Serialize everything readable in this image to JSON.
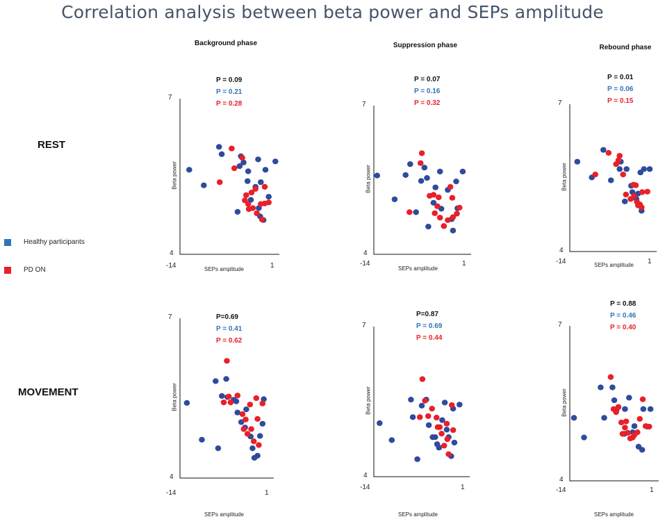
{
  "title": "Correlation analysis between beta power and SEPs amplitude",
  "phases": [
    "Background phase",
    "Suppression phase",
    "Rebound phase"
  ],
  "rows": [
    "REST",
    "MOVEMENT"
  ],
  "legend": [
    {
      "label": "Healthy participants",
      "color": "#2e4b9c"
    },
    {
      "label": "PD ON",
      "color": "#e8202a"
    }
  ],
  "colors": {
    "overall": "#111111",
    "healthy_text": "#2e75b6",
    "pd_text": "#e8202a",
    "healthy_dot": "#2e4b9c",
    "pd_dot": "#e8202a"
  },
  "chart_data": [
    {
      "type": "scatter",
      "row": "REST",
      "phase": "Background phase",
      "xlabel": "SEPs amplitude",
      "ylabel": "Beta power",
      "x_tick_labels": [
        "-14",
        "1"
      ],
      "y_tick_labels": [
        "4",
        "7"
      ],
      "xlim": [
        -14,
        1
      ],
      "ylim": [
        4,
        7
      ],
      "p_values": [
        "P = 0.09",
        "P = 0.21",
        "P = 0.28"
      ],
      "series": [
        {
          "name": "Healthy participants",
          "points": [
            [
              -12.6,
              5.63
            ],
            [
              -10.4,
              5.33
            ],
            [
              -8.1,
              6.07
            ],
            [
              -7.7,
              5.93
            ],
            [
              -5.3,
              4.82
            ],
            [
              -5.0,
              5.7
            ],
            [
              -4.8,
              5.89
            ],
            [
              -4.4,
              5.77
            ],
            [
              -3.8,
              5.41
            ],
            [
              -3.7,
              5.6
            ],
            [
              -3.3,
              5.05
            ],
            [
              -2.6,
              5.3
            ],
            [
              -2.2,
              5.83
            ],
            [
              -2.1,
              4.89
            ],
            [
              -1.9,
              4.73
            ],
            [
              -1.8,
              5.39
            ],
            [
              -1.4,
              4.66
            ],
            [
              -1.1,
              5.63
            ],
            [
              -0.6,
              5.11
            ],
            [
              0.4,
              5.79
            ]
          ]
        },
        {
          "name": "PD ON",
          "points": [
            [
              -8.0,
              5.39
            ],
            [
              -6.2,
              6.04
            ],
            [
              -5.8,
              5.66
            ],
            [
              -4.6,
              5.86
            ],
            [
              -4.2,
              5.04
            ],
            [
              -4.0,
              5.14
            ],
            [
              -3.7,
              4.97
            ],
            [
              -3.6,
              4.87
            ],
            [
              -3.2,
              5.19
            ],
            [
              -3.0,
              4.89
            ],
            [
              -2.6,
              5.26
            ],
            [
              -2.4,
              4.79
            ],
            [
              -1.8,
              4.97
            ],
            [
              -1.6,
              4.67
            ],
            [
              -1.2,
              4.98
            ],
            [
              -1.2,
              5.3
            ],
            [
              -0.6,
              5.0
            ]
          ]
        }
      ]
    },
    {
      "type": "scatter",
      "row": "REST",
      "phase": "Suppression phase",
      "xlabel": "SEPs amplitude",
      "ylabel": "Beta power",
      "x_tick_labels": [
        "-14",
        "1"
      ],
      "y_tick_labels": [
        "4",
        "7"
      ],
      "xlim": [
        -14,
        1
      ],
      "ylim": [
        4,
        7
      ],
      "p_values": [
        "P = 0.07",
        "P = 0.16",
        "P = 0.32"
      ],
      "series": [
        {
          "name": "Healthy participants",
          "points": [
            [
              -13.5,
              5.59
            ],
            [
              -10.8,
              5.11
            ],
            [
              -9.1,
              5.6
            ],
            [
              -8.4,
              5.82
            ],
            [
              -7.5,
              4.85
            ],
            [
              -6.7,
              5.48
            ],
            [
              -6.2,
              5.75
            ],
            [
              -5.8,
              5.54
            ],
            [
              -5.6,
              4.56
            ],
            [
              -4.8,
              5.04
            ],
            [
              -4.5,
              5.35
            ],
            [
              -3.8,
              5.67
            ],
            [
              -3.6,
              4.92
            ],
            [
              -3.2,
              4.57
            ],
            [
              -2.6,
              5.3
            ],
            [
              -2.0,
              4.71
            ],
            [
              -1.8,
              4.48
            ],
            [
              -1.3,
              5.47
            ],
            [
              -1.1,
              4.93
            ],
            [
              -0.3,
              5.67
            ]
          ]
        },
        {
          "name": "PD ON",
          "points": [
            [
              -8.5,
              4.85
            ],
            [
              -6.8,
              5.84
            ],
            [
              -6.6,
              6.04
            ],
            [
              -5.4,
              5.18
            ],
            [
              -4.8,
              5.2
            ],
            [
              -4.6,
              4.83
            ],
            [
              -4.2,
              4.97
            ],
            [
              -4.0,
              5.15
            ],
            [
              -3.8,
              4.74
            ],
            [
              -3.2,
              4.57
            ],
            [
              -2.6,
              4.69
            ],
            [
              -2.2,
              5.36
            ],
            [
              -1.9,
              5.14
            ],
            [
              -1.8,
              4.75
            ],
            [
              -1.2,
              4.82
            ],
            [
              -0.8,
              4.94
            ]
          ]
        }
      ]
    },
    {
      "type": "scatter",
      "row": "REST",
      "phase": "Rebound phase",
      "xlabel": "SEPs amplitude",
      "ylabel": "Beta power",
      "x_tick_labels": [
        "-14",
        "1"
      ],
      "y_tick_labels": [
        "4",
        "7"
      ],
      "xlim": [
        -14,
        1
      ],
      "ylim": [
        4,
        7
      ],
      "p_values": [
        "P = 0.01",
        "P = 0.06",
        "P = 0.15"
      ],
      "series": [
        {
          "name": "Healthy participants",
          "points": [
            [
              -12.7,
              5.83
            ],
            [
              -10.2,
              5.51
            ],
            [
              -8.2,
              6.07
            ],
            [
              -6.9,
              5.45
            ],
            [
              -5.4,
              5.68
            ],
            [
              -5.2,
              5.83
            ],
            [
              -4.5,
              5.02
            ],
            [
              -4.2,
              5.68
            ],
            [
              -3.4,
              5.34
            ],
            [
              -3.2,
              5.21
            ],
            [
              -2.5,
              5.07
            ],
            [
              -2.2,
              5.18
            ],
            [
              -1.8,
              5.61
            ],
            [
              -1.6,
              4.83
            ],
            [
              -1.2,
              5.68
            ],
            [
              -0.2,
              5.68
            ]
          ]
        },
        {
          "name": "PD ON",
          "points": [
            [
              -9.6,
              5.57
            ],
            [
              -7.3,
              6.01
            ],
            [
              -6.0,
              5.78
            ],
            [
              -5.6,
              5.86
            ],
            [
              -5.4,
              5.95
            ],
            [
              -4.8,
              5.57
            ],
            [
              -4.3,
              5.16
            ],
            [
              -3.5,
              5.07
            ],
            [
              -3.0,
              5.36
            ],
            [
              -2.9,
              5.13
            ],
            [
              -2.6,
              5.35
            ],
            [
              -2.4,
              5.01
            ],
            [
              -2.2,
              4.94
            ],
            [
              -1.9,
              4.96
            ],
            [
              -1.5,
              5.21
            ],
            [
              -1.6,
              4.9
            ],
            [
              -0.6,
              5.22
            ]
          ]
        }
      ]
    },
    {
      "type": "scatter",
      "row": "MOVEMENT",
      "phase": "Background phase",
      "xlabel": "SEPs amplitude",
      "ylabel": "Beta power",
      "x_tick_labels": [
        "-14",
        "1"
      ],
      "y_tick_labels": [
        "4",
        "7"
      ],
      "xlim": [
        -14,
        1
      ],
      "ylim": [
        4,
        7
      ],
      "p_values": [
        "P=0.69",
        "P = 0.41",
        "P = 0.62"
      ],
      "series": [
        {
          "name": "Healthy participants",
          "points": [
            [
              -12.9,
              5.41
            ],
            [
              -10.5,
              4.72
            ],
            [
              -8.3,
              5.82
            ],
            [
              -7.9,
              4.56
            ],
            [
              -7.3,
              5.54
            ],
            [
              -6.6,
              5.86
            ],
            [
              -6.4,
              5.52
            ],
            [
              -5.4,
              5.47
            ],
            [
              -5.0,
              5.44
            ],
            [
              -4.8,
              5.23
            ],
            [
              -4.2,
              5.05
            ],
            [
              -3.6,
              4.95
            ],
            [
              -3.4,
              5.29
            ],
            [
              -2.7,
              4.78
            ],
            [
              -2.4,
              4.56
            ],
            [
              -2.1,
              4.38
            ],
            [
              -1.6,
              4.42
            ],
            [
              -1.2,
              4.79
            ],
            [
              -0.8,
              5.02
            ],
            [
              -0.6,
              5.48
            ]
          ]
        },
        {
          "name": "PD ON",
          "points": [
            [
              -6.5,
              6.2
            ],
            [
              -7.0,
              5.42
            ],
            [
              -6.2,
              5.53
            ],
            [
              -5.9,
              5.42
            ],
            [
              -4.8,
              5.55
            ],
            [
              -4.0,
              5.2
            ],
            [
              -3.8,
              4.92
            ],
            [
              -3.5,
              5.1
            ],
            [
              -3.2,
              4.83
            ],
            [
              -2.8,
              5.38
            ],
            [
              -2.6,
              4.92
            ],
            [
              -2.2,
              4.69
            ],
            [
              -1.8,
              5.5
            ],
            [
              -1.6,
              5.11
            ],
            [
              -1.4,
              4.62
            ],
            [
              -0.8,
              5.4
            ]
          ]
        }
      ]
    },
    {
      "type": "scatter",
      "row": "MOVEMENT",
      "phase": "Suppression phase",
      "xlabel": "SEPs amplitude",
      "ylabel": "Beta power",
      "x_tick_labels": [
        "-14",
        "1"
      ],
      "y_tick_labels": [
        "4",
        "7"
      ],
      "xlim": [
        -14,
        1
      ],
      "ylim": [
        4,
        7
      ],
      "p_values": [
        "P=0.87",
        "P = 0.69",
        "P = 0.44"
      ],
      "series": [
        {
          "name": "Healthy participants",
          "points": [
            [
              -13.1,
              5.07
            ],
            [
              -11.2,
              4.73
            ],
            [
              -8.2,
              5.54
            ],
            [
              -7.9,
              5.19
            ],
            [
              -7.2,
              4.35
            ],
            [
              -6.5,
              5.42
            ],
            [
              -5.8,
              5.54
            ],
            [
              -5.4,
              5.03
            ],
            [
              -4.8,
              4.79
            ],
            [
              -4.4,
              4.79
            ],
            [
              -4.1,
              4.65
            ],
            [
              -3.8,
              4.58
            ],
            [
              -3.3,
              5.13
            ],
            [
              -2.9,
              5.48
            ],
            [
              -2.6,
              4.94
            ],
            [
              -2.3,
              4.79
            ],
            [
              -1.9,
              4.41
            ],
            [
              -1.6,
              5.36
            ],
            [
              -1.4,
              4.68
            ],
            [
              -0.6,
              5.44
            ]
          ]
        },
        {
          "name": "PD ON",
          "points": [
            [
              -6.4,
              5.95
            ],
            [
              -6.8,
              5.19
            ],
            [
              -6.0,
              5.52
            ],
            [
              -5.5,
              5.21
            ],
            [
              -4.9,
              5.36
            ],
            [
              -4.2,
              5.18
            ],
            [
              -4.0,
              4.99
            ],
            [
              -3.7,
              4.99
            ],
            [
              -3.4,
              4.86
            ],
            [
              -3.0,
              4.62
            ],
            [
              -2.6,
              5.06
            ],
            [
              -2.5,
              4.75
            ],
            [
              -2.3,
              4.45
            ],
            [
              -1.8,
              5.43
            ],
            [
              -1.6,
              4.93
            ]
          ]
        }
      ]
    },
    {
      "type": "scatter",
      "row": "MOVEMENT",
      "phase": "Rebound phase",
      "xlabel": "SEPs amplitude",
      "ylabel": "Beta power",
      "x_tick_labels": [
        "-14",
        "1"
      ],
      "y_tick_labels": [
        "4",
        "7"
      ],
      "xlim": [
        -14,
        1
      ],
      "ylim": [
        4,
        7
      ],
      "p_values": [
        "P = 0.88",
        "P = 0.46",
        "P = 0.40"
      ],
      "series": [
        {
          "name": "Healthy participants",
          "points": [
            [
              -13.3,
              5.22
            ],
            [
              -11.6,
              4.84
            ],
            [
              -8.8,
              5.81
            ],
            [
              -8.2,
              5.22
            ],
            [
              -6.8,
              5.81
            ],
            [
              -6.5,
              5.56
            ],
            [
              -6.1,
              5.38
            ],
            [
              -4.7,
              5.39
            ],
            [
              -4.8,
              4.91
            ],
            [
              -4.0,
              5.61
            ],
            [
              -3.4,
              4.94
            ],
            [
              -3.1,
              5.06
            ],
            [
              -2.4,
              4.66
            ],
            [
              -1.8,
              4.6
            ],
            [
              -1.6,
              5.39
            ],
            [
              -0.9,
              5.05
            ],
            [
              -0.4,
              5.39
            ]
          ]
        },
        {
          "name": "PD ON",
          "points": [
            [
              -7.1,
              6.01
            ],
            [
              -6.6,
              5.39
            ],
            [
              -6.2,
              5.33
            ],
            [
              -5.8,
              5.43
            ],
            [
              -5.3,
              5.13
            ],
            [
              -5.1,
              4.91
            ],
            [
              -4.7,
              5.03
            ],
            [
              -4.5,
              5.15
            ],
            [
              -4.2,
              4.93
            ],
            [
              -3.8,
              4.82
            ],
            [
              -3.4,
              4.84
            ],
            [
              -3.1,
              4.89
            ],
            [
              -2.6,
              4.94
            ],
            [
              -2.2,
              5.2
            ],
            [
              -1.7,
              5.58
            ],
            [
              -1.2,
              5.06
            ],
            [
              -0.6,
              5.05
            ]
          ]
        }
      ]
    }
  ]
}
